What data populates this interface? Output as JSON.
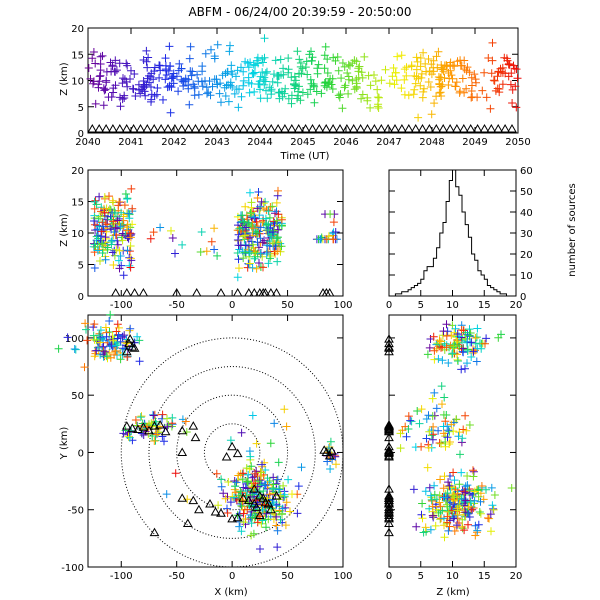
{
  "title": "ABFM - 06/24/00 20:39:59 - 20:50:00",
  "time_panel": {
    "xlabel": "Time (UT)",
    "ylabel": "Z (km)",
    "xlim": [
      2040,
      2050
    ],
    "ylim": [
      0,
      20
    ],
    "xticks": [
      "2040",
      "2041",
      "2042",
      "2043",
      "2044",
      "2045",
      "2046",
      "2047",
      "2048",
      "2049",
      "2050"
    ],
    "yticks": [
      "0",
      "5",
      "10",
      "15",
      "20"
    ]
  },
  "xz_panel": {
    "xlabel": "",
    "ylabel": "Z (km)",
    "xlim": [
      -130,
      100
    ],
    "ylim": [
      0,
      20
    ],
    "xticks": [
      "-100",
      "-50",
      "0",
      "50",
      "100"
    ],
    "yticks": [
      "0",
      "5",
      "10",
      "15",
      "20"
    ]
  },
  "hist_panel": {
    "xlabel": "",
    "ylabel": "number of sources",
    "xlim": [
      0,
      20
    ],
    "ylim": [
      0,
      60
    ],
    "xticks": [
      "0",
      "5",
      "10",
      "15",
      "20"
    ],
    "yticks": [
      "0",
      "10",
      "20",
      "30",
      "40",
      "50",
      "60"
    ]
  },
  "xy_panel": {
    "xlabel": "X (km)",
    "ylabel": "Y (km)",
    "xlim": [
      -130,
      100
    ],
    "ylim": [
      -100,
      120
    ],
    "xticks": [
      "-100",
      "-50",
      "0",
      "50",
      "100"
    ],
    "yticks": [
      "-100",
      "-50",
      "0",
      "50",
      "100"
    ]
  },
  "zy_panel": {
    "xlabel": "Z (km)",
    "ylabel": "",
    "xlim": [
      0,
      20
    ],
    "ylim": [
      -100,
      120
    ],
    "xticks": [
      "0",
      "5",
      "10",
      "15",
      "20"
    ],
    "yticks": [
      "-100",
      "-50",
      "0",
      "50",
      "100"
    ]
  },
  "chart_data": [
    {
      "type": "scatter",
      "panel": "time_height",
      "xlabel": "Time (UT)",
      "ylabel": "Z (km)",
      "xlim": [
        2040,
        2050
      ],
      "ylim": [
        0,
        20
      ],
      "marker": "+",
      "color_by_time": true,
      "approx_height_range_km": [
        3,
        19
      ],
      "typical_height_km": 10,
      "station_markers": {
        "marker": "triangle",
        "z": 0
      }
    },
    {
      "type": "scatter",
      "panel": "x_height",
      "ylabel": "Z (km)",
      "xlim": [
        -130,
        100
      ],
      "ylim": [
        0,
        20
      ],
      "clusters": [
        {
          "x_center": -105,
          "x_range": [
            -125,
            -90
          ],
          "z_range": [
            2,
            17
          ]
        },
        {
          "x_center": 27,
          "x_range": [
            5,
            45
          ],
          "z_range": [
            2,
            18
          ]
        },
        {
          "x_center": 85,
          "x_range": [
            75,
            95
          ],
          "z_range": [
            9,
            13
          ]
        }
      ],
      "station_x": [
        -105,
        -95,
        -88,
        -80,
        -50,
        -32,
        -10,
        5,
        15,
        20,
        25,
        28,
        30,
        35,
        40,
        82,
        85,
        88
      ]
    },
    {
      "type": "bar",
      "panel": "height_histogram",
      "xlabel": "",
      "ylabel": "number of sources",
      "xlim": [
        0,
        20
      ],
      "ylim": [
        0,
        60
      ],
      "bin_width_km": 0.5,
      "bin_left_edges": [
        1,
        1.5,
        2,
        2.5,
        3,
        3.5,
        4,
        4.5,
        5,
        5.5,
        6,
        6.5,
        7,
        7.5,
        8,
        8.5,
        9,
        9.5,
        10,
        10.5,
        11,
        11.5,
        12,
        12.5,
        13,
        13.5,
        14,
        14.5,
        15,
        15.5,
        16,
        16.5,
        17,
        17.5,
        18
      ],
      "counts": [
        1,
        1,
        2,
        2,
        3,
        4,
        5,
        6,
        8,
        12,
        14,
        14,
        18,
        23,
        30,
        35,
        45,
        55,
        60,
        52,
        48,
        40,
        34,
        28,
        20,
        17,
        12,
        10,
        8,
        5,
        4,
        3,
        2,
        1,
        1
      ]
    },
    {
      "type": "scatter",
      "panel": "plan_view",
      "xlabel": "X (km)",
      "ylabel": "Y (km)",
      "xlim": [
        -130,
        100
      ],
      "ylim": [
        -100,
        120
      ],
      "range_rings_km": [
        25,
        50,
        75,
        100
      ],
      "clusters": [
        {
          "x_center": -110,
          "y_center": 95
        },
        {
          "x_center": -75,
          "y_center": 20
        },
        {
          "x_center": 25,
          "y_center": -40
        },
        {
          "x_center": 88,
          "y_center": 0
        }
      ],
      "stations": [
        [
          -93,
          95
        ],
        [
          -90,
          92
        ],
        [
          -95,
          88
        ],
        [
          -92,
          99
        ],
        [
          -88,
          91
        ],
        [
          -95,
          23
        ],
        [
          -90,
          21
        ],
        [
          -85,
          20
        ],
        [
          -80,
          22
        ],
        [
          -75,
          19
        ],
        [
          -70,
          23
        ],
        [
          -65,
          24
        ],
        [
          -60,
          18
        ],
        [
          -45,
          19
        ],
        [
          -35,
          23
        ],
        [
          -33,
          13
        ],
        [
          -45,
          0
        ],
        [
          0,
          5
        ],
        [
          5,
          -1
        ],
        [
          -5,
          -4
        ],
        [
          -45,
          -40
        ],
        [
          -35,
          -42
        ],
        [
          -20,
          -45
        ],
        [
          -10,
          -53
        ],
        [
          -15,
          -52
        ],
        [
          -30,
          -50
        ],
        [
          -70,
          -70
        ],
        [
          -40,
          -62
        ],
        [
          0,
          -58
        ],
        [
          5,
          -57
        ],
        [
          10,
          -40
        ],
        [
          15,
          -42
        ],
        [
          20,
          -45
        ],
        [
          22,
          -48
        ],
        [
          25,
          -38
        ],
        [
          28,
          -40
        ],
        [
          30,
          -44
        ],
        [
          33,
          -45
        ],
        [
          35,
          -50
        ],
        [
          25,
          -55
        ],
        [
          20,
          -32
        ],
        [
          40,
          -38
        ],
        [
          85,
          0
        ],
        [
          88,
          -3
        ],
        [
          83,
          2
        ],
        [
          90,
          1
        ]
      ]
    },
    {
      "type": "scatter",
      "panel": "z_y",
      "xlabel": "Z (km)",
      "ylabel": "",
      "xlim": [
        0,
        20
      ],
      "ylim": [
        -100,
        120
      ],
      "clusters": [
        {
          "z_center": 11,
          "y_center": 95
        },
        {
          "z_center": 8,
          "y_center": 20
        },
        {
          "z_center": 11,
          "y_center": -45
        }
      ]
    }
  ]
}
